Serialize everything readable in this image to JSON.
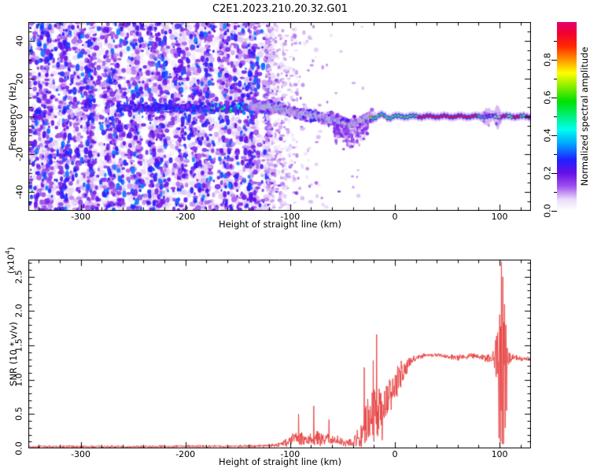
{
  "chart_data": [
    {
      "type": "heatmap",
      "title": "C2E1.2023.210.20.32.G01",
      "xlabel": "Height of straight line (km)",
      "ylabel": "Frequency (Hz)",
      "xlim": [
        -350,
        130
      ],
      "ylim": [
        -50,
        50
      ],
      "xticks": [
        -300,
        -200,
        -100,
        0,
        100
      ],
      "xtick_labels": [
        "-300",
        "-200",
        "-100",
        "0",
        "100"
      ],
      "x_minor_step": 20,
      "yticks": [
        -40,
        -20,
        0,
        20,
        40
      ],
      "ytick_labels": [
        "-40",
        "-20",
        "0",
        "20",
        "40"
      ],
      "y_minor_step": 5,
      "grid": false,
      "colorbar": {
        "label": "Normalized spectral amplitude",
        "ticks": [
          "0.0",
          "0.2",
          "0.4",
          "0.6",
          "0.8"
        ],
        "tick_values": [
          0,
          0.2,
          0.4,
          0.6,
          0.8
        ],
        "minor_step": 0.1,
        "range": [
          0,
          1
        ],
        "gradient_stops": [
          [
            0.0,
            "#ffffff"
          ],
          [
            0.06,
            "#eadcfa"
          ],
          [
            0.13,
            "#a050ec"
          ],
          [
            0.2,
            "#6610e8"
          ],
          [
            0.27,
            "#2020ff"
          ],
          [
            0.36,
            "#00aaff"
          ],
          [
            0.43,
            "#00ffee"
          ],
          [
            0.5,
            "#00f080"
          ],
          [
            0.58,
            "#00e000"
          ],
          [
            0.67,
            "#9cf000"
          ],
          [
            0.73,
            "#ffff00"
          ],
          [
            0.8,
            "#ff9500"
          ],
          [
            0.87,
            "#ff2a00"
          ],
          [
            0.94,
            "#f20030"
          ],
          [
            1.0,
            "#e4006e"
          ]
        ]
      },
      "features": {
        "noise_region": {
          "x_range_km": [
            -350,
            -121
          ],
          "amplitude_range": [
            0.02,
            0.32
          ],
          "description": "full-band purple speckle noise filling the panel left of ~-121 km"
        },
        "noise_band": {
          "x_range_km": [
            -265,
            -125
          ],
          "center_hz": 4.5,
          "spread_hz": 2.3,
          "description": "darker horizontal concentration of noise just above 0 Hz"
        },
        "trace_path_km_hz": [
          [
            -137,
            6
          ],
          [
            -128,
            5.2
          ],
          [
            -120,
            4.8
          ],
          [
            -112,
            4.2
          ],
          [
            -104,
            3.4
          ],
          [
            -96,
            2.6
          ],
          [
            -88,
            1.6
          ],
          [
            -80,
            0.7
          ],
          [
            -73,
            -0.2
          ],
          [
            -66,
            -1.2
          ],
          [
            -59,
            -2.2
          ],
          [
            -52,
            -3.2
          ],
          [
            -46,
            -4.4
          ],
          [
            -42,
            -5
          ],
          [
            -38,
            -4
          ],
          [
            -34,
            -2.8
          ],
          [
            -30,
            -2
          ],
          [
            -26,
            -1
          ],
          [
            -22,
            0
          ]
        ],
        "trace_amplitude_range": [
          0.3,
          0.95
        ],
        "carrier_line": {
          "x_range_km": [
            -22,
            130
          ],
          "center_hz": 0,
          "typical_amplitude": 0.65,
          "red_segments_km": [
            [
              22,
              79
            ],
            [
              99,
              107
            ],
            [
              113,
              120
            ],
            [
              125,
              131
            ]
          ],
          "bursts": [
            {
              "center_km": -28,
              "width_km": 4,
              "spread_hz": 3.5
            },
            {
              "center_km": 88,
              "width_km": 4,
              "spread_hz": 4.5
            },
            {
              "center_km": 98,
              "width_km": 2.5,
              "spread_hz": 8
            }
          ]
        },
        "tail_below_dip": {
          "x_range_km": [
            -58,
            -26
          ],
          "hz_range": [
            -22,
            -3
          ],
          "description": "faint purple scatter descending below the trace dip"
        }
      }
    },
    {
      "type": "line",
      "xlabel": "Height of straight line (km)",
      "ylabel": "SNR (10 * v/v)",
      "y_scale": {
        "prefix": "(x10",
        "exp": "4",
        "suffix": ")"
      },
      "xlim": [
        -350,
        130
      ],
      "ylim": [
        0,
        2.75
      ],
      "xticks": [
        -300,
        -200,
        -100,
        0,
        100
      ],
      "xtick_labels": [
        "-300",
        "-200",
        "-100",
        "0",
        "100"
      ],
      "x_minor_step": 20,
      "yticks": [
        0,
        0.5,
        1,
        1.5,
        2,
        2.5
      ],
      "ytick_labels": [
        "0.0",
        "0.5",
        "1.0",
        "1.5",
        "2.0",
        "2.5"
      ],
      "y_minor_step": 0.1,
      "grid": false,
      "line_color": "#e84040",
      "series_name": "SNR",
      "envelope_points_x_base_jitter": [
        [
          -350,
          0.025,
          0.018
        ],
        [
          -300,
          0.027,
          0.02
        ],
        [
          -250,
          0.025,
          0.018
        ],
        [
          -200,
          0.03,
          0.022
        ],
        [
          -160,
          0.03,
          0.02
        ],
        [
          -130,
          0.035,
          0.025
        ],
        [
          -112,
          0.05,
          0.04
        ],
        [
          -102,
          0.09,
          0.08
        ],
        [
          -94,
          0.16,
          0.15
        ],
        [
          -88,
          0.14,
          0.12
        ],
        [
          -82,
          0.13,
          0.1
        ],
        [
          -76,
          0.15,
          0.14
        ],
        [
          -70,
          0.12,
          0.1
        ],
        [
          -64,
          0.14,
          0.11
        ],
        [
          -58,
          0.12,
          0.09
        ],
        [
          -52,
          0.1,
          0.08
        ],
        [
          -46,
          0.09,
          0.07
        ],
        [
          -40,
          0.1,
          0.1
        ],
        [
          -34,
          0.14,
          0.18
        ],
        [
          -30,
          0.25,
          0.35
        ],
        [
          -26,
          0.35,
          0.45
        ],
        [
          -22,
          0.45,
          0.5
        ],
        [
          -18,
          0.5,
          0.45
        ],
        [
          -14,
          0.55,
          0.4
        ],
        [
          -10,
          0.62,
          0.35
        ],
        [
          -6,
          0.72,
          0.33
        ],
        [
          -2,
          0.85,
          0.3
        ],
        [
          2,
          0.95,
          0.27
        ],
        [
          6,
          1.05,
          0.22
        ],
        [
          10,
          1.15,
          0.15
        ],
        [
          14,
          1.24,
          0.1
        ],
        [
          18,
          1.3,
          0.06
        ],
        [
          24,
          1.34,
          0.04
        ],
        [
          32,
          1.36,
          0.03
        ],
        [
          42,
          1.36,
          0.03
        ],
        [
          52,
          1.33,
          0.045
        ],
        [
          60,
          1.33,
          0.09
        ],
        [
          66,
          1.33,
          0.05
        ],
        [
          74,
          1.35,
          0.045
        ],
        [
          82,
          1.33,
          0.05
        ],
        [
          88,
          1.31,
          0.08
        ],
        [
          93,
          1.28,
          0.13
        ],
        [
          97,
          1.3,
          0.45
        ],
        [
          100,
          1.3,
          0.95
        ],
        [
          103,
          1.3,
          1.3
        ],
        [
          106,
          1.25,
          0.55
        ],
        [
          109,
          1.3,
          0.12
        ],
        [
          114,
          1.32,
          0.05
        ],
        [
          122,
          1.3,
          0.04
        ],
        [
          130,
          1.31,
          0.045
        ]
      ],
      "notable_spikes_x_value": [
        [
          -92,
          0.5
        ],
        [
          -91.3,
          0.06
        ],
        [
          -77.5,
          0.62
        ],
        [
          -76.9,
          0.05
        ],
        [
          -63,
          0.42
        ],
        [
          -29.2,
          1.18
        ],
        [
          -28.6,
          0.08
        ],
        [
          -20.6,
          1.28
        ],
        [
          -19.9,
          0.1
        ],
        [
          -17.2,
          1.66
        ],
        [
          -16.5,
          0.18
        ],
        [
          -12.1,
          0.12
        ],
        [
          99.3,
          0.15
        ],
        [
          100.1,
          1.95
        ],
        [
          100.9,
          0.1
        ],
        [
          101.7,
          2.72
        ],
        [
          102.4,
          0.07
        ],
        [
          103.2,
          2.5
        ],
        [
          103.9,
          0.06
        ],
        [
          104.6,
          2.1
        ],
        [
          105.3,
          0.3
        ],
        [
          106.1,
          1.8
        ],
        [
          106.8,
          0.55
        ]
      ]
    }
  ]
}
